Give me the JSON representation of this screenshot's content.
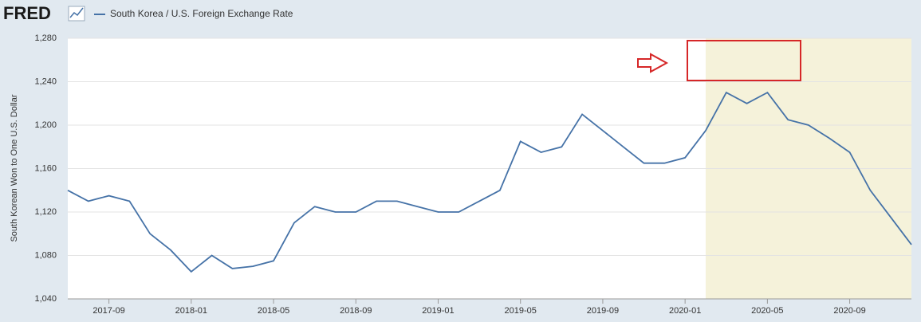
{
  "logo": "FRED",
  "chart_data": {
    "type": "line",
    "y_label": "South Korean Won to One U.S. Dollar",
    "x": [
      "2017-07",
      "2017-08",
      "2017-09",
      "2017-10",
      "2017-11",
      "2017-12",
      "2018-01",
      "2018-02",
      "2018-03",
      "2018-04",
      "2018-05",
      "2018-06",
      "2018-07",
      "2018-08",
      "2018-09",
      "2018-10",
      "2018-11",
      "2018-12",
      "2019-01",
      "2019-02",
      "2019-03",
      "2019-04",
      "2019-05",
      "2019-06",
      "2019-07",
      "2019-08",
      "2019-09",
      "2019-10",
      "2019-11",
      "2019-12",
      "2020-01",
      "2020-02",
      "2020-03",
      "2020-04",
      "2020-05",
      "2020-06",
      "2020-07",
      "2020-08",
      "2020-09",
      "2020-10",
      "2020-11",
      "2020-12"
    ],
    "series": [
      {
        "name": "South Korea / U.S. Foreign Exchange Rate",
        "color": "#4572a7",
        "values": [
          1140,
          1130,
          1135,
          1130,
          1100,
          1085,
          1065,
          1080,
          1068,
          1070,
          1075,
          1110,
          1125,
          1120,
          1120,
          1130,
          1130,
          1125,
          1120,
          1120,
          1130,
          1140,
          1185,
          1175,
          1180,
          1210,
          1195,
          1180,
          1165,
          1165,
          1170,
          1195,
          1230,
          1220,
          1230,
          1205,
          1200,
          1188,
          1175,
          1140,
          1115,
          1090
        ]
      }
    ],
    "xlim": [
      "2017-07",
      "2020-12"
    ],
    "xticks": [
      "2017-09",
      "2018-01",
      "2018-05",
      "2018-09",
      "2019-01",
      "2019-05",
      "2019-09",
      "2020-01",
      "2020-05",
      "2020-09"
    ],
    "ylim": [
      1040,
      1280
    ],
    "yticks": [
      {
        "value": 1040,
        "label": "1,040"
      },
      {
        "value": 1080,
        "label": "1,080"
      },
      {
        "value": 1120,
        "label": "1,120"
      },
      {
        "value": 1160,
        "label": "1,160"
      },
      {
        "value": 1200,
        "label": "1,200"
      },
      {
        "value": 1240,
        "label": "1,240"
      },
      {
        "value": 1280,
        "label": "1,280"
      }
    ],
    "grid": true,
    "shaded_region": {
      "start": "2020-02",
      "end": "2020-12",
      "color": "#f5f2da"
    }
  }
}
